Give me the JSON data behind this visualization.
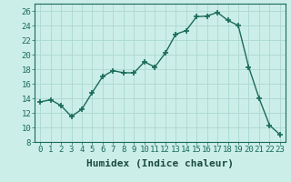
{
  "x": [
    0,
    1,
    2,
    3,
    4,
    5,
    6,
    7,
    8,
    9,
    10,
    11,
    12,
    13,
    14,
    15,
    16,
    17,
    18,
    19,
    20,
    21,
    22,
    23
  ],
  "y": [
    13.5,
    13.8,
    13.0,
    11.5,
    12.5,
    14.8,
    17.0,
    17.8,
    17.5,
    17.5,
    19.0,
    18.3,
    20.2,
    22.8,
    23.3,
    25.2,
    25.3,
    25.8,
    24.7,
    24.0,
    18.3,
    14.0,
    10.3,
    9.0
  ],
  "line_color": "#1a6b5a",
  "marker_color": "#1a6b5a",
  "bg_color": "#cceee8",
  "grid_color_major": "#aad8d0",
  "xlabel": "Humidex (Indice chaleur)",
  "ylim": [
    8,
    27
  ],
  "xlim": [
    -0.5,
    23.5
  ],
  "yticks": [
    8,
    10,
    12,
    14,
    16,
    18,
    20,
    22,
    24,
    26
  ],
  "xticks": [
    0,
    1,
    2,
    3,
    4,
    5,
    6,
    7,
    8,
    9,
    10,
    11,
    12,
    13,
    14,
    15,
    16,
    17,
    18,
    19,
    20,
    21,
    22,
    23
  ],
  "font_size": 6.5,
  "label_font_size": 8.0
}
